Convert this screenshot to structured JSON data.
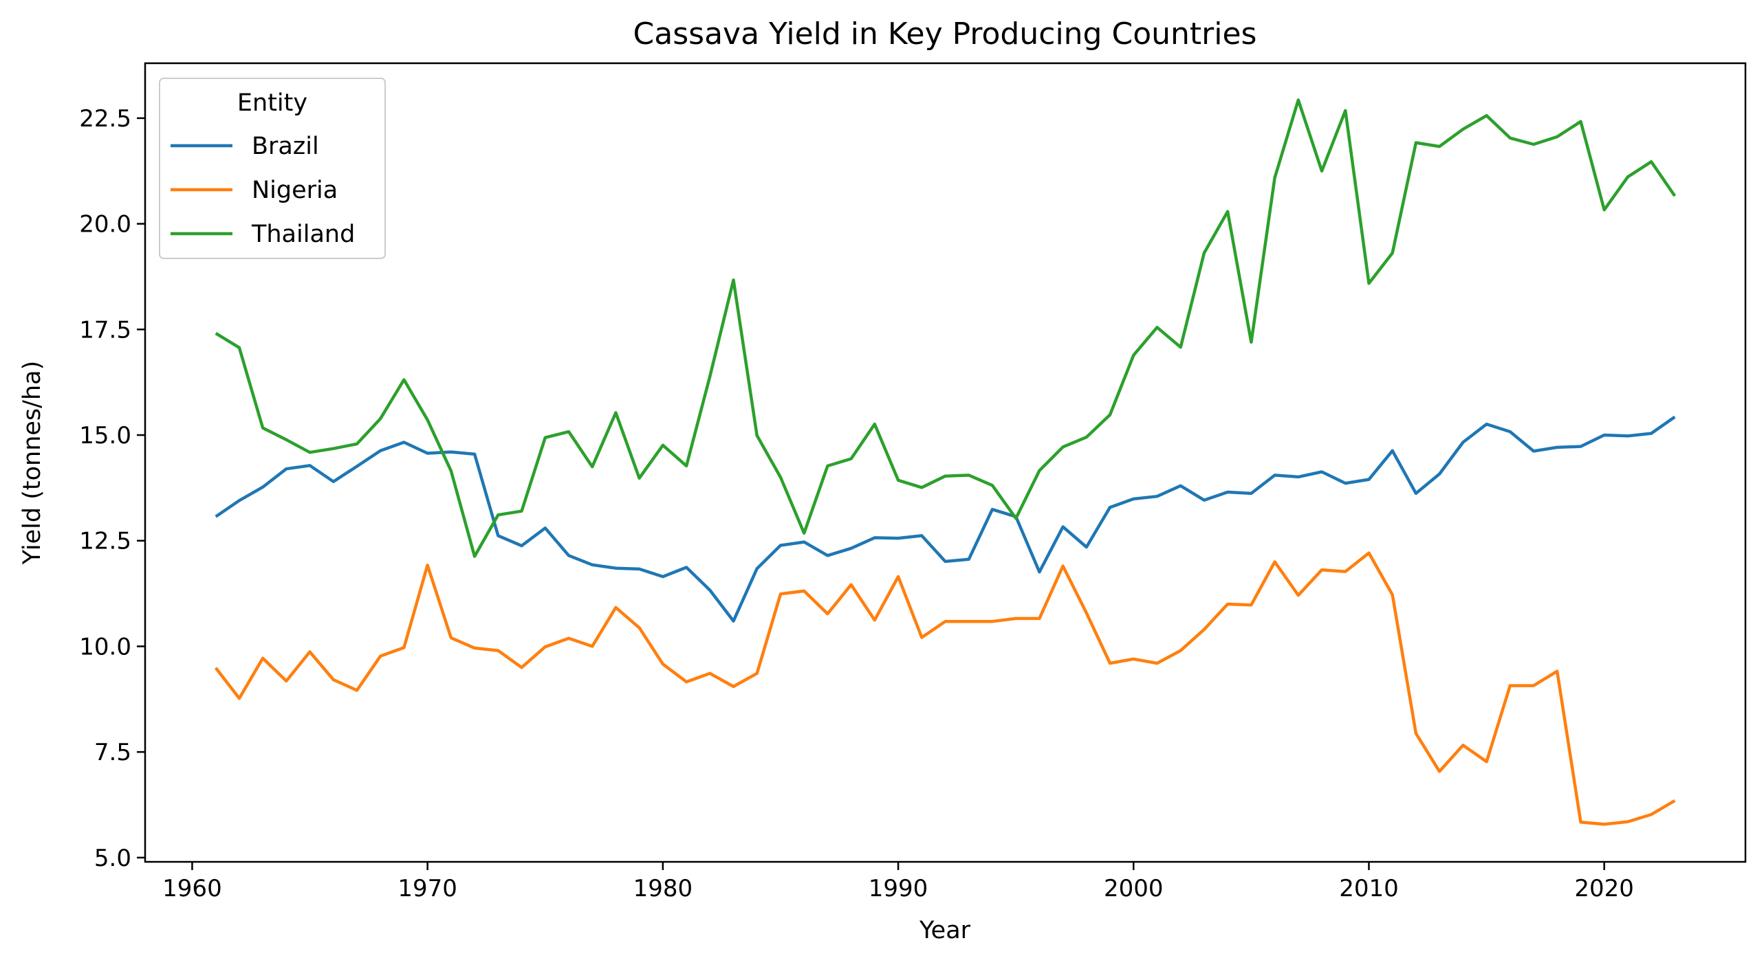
{
  "chart_data": {
    "type": "line",
    "title": "Cassava Yield in Key Producing Countries",
    "xlabel": "Year",
    "ylabel": "Yield (tonnes/ha)",
    "xlim": [
      1958,
      2026
    ],
    "ylim": [
      4.9,
      23.8
    ],
    "xticks": [
      1960,
      1970,
      1980,
      1990,
      2000,
      2010,
      2020
    ],
    "yticks": [
      5.0,
      7.5,
      10.0,
      12.5,
      15.0,
      17.5,
      20.0,
      22.5
    ],
    "ytick_labels": [
      "5.0",
      "7.5",
      "10.0",
      "12.5",
      "15.0",
      "17.5",
      "20.0",
      "22.5"
    ],
    "grid": false,
    "legend": {
      "title": "Entity",
      "position": "top-left"
    },
    "x": [
      1961,
      1962,
      1963,
      1964,
      1965,
      1966,
      1967,
      1968,
      1969,
      1970,
      1971,
      1972,
      1973,
      1974,
      1975,
      1976,
      1977,
      1978,
      1979,
      1980,
      1981,
      1982,
      1983,
      1984,
      1985,
      1986,
      1987,
      1988,
      1989,
      1990,
      1991,
      1992,
      1993,
      1994,
      1995,
      1996,
      1997,
      1998,
      1999,
      2000,
      2001,
      2002,
      2003,
      2004,
      2005,
      2006,
      2007,
      2008,
      2009,
      2010,
      2011,
      2012,
      2013,
      2014,
      2015,
      2016,
      2017,
      2018,
      2019,
      2020,
      2021,
      2022,
      2023
    ],
    "series": [
      {
        "name": "Brazil",
        "color": "#1f77b4",
        "values": [
          13.07,
          13.45,
          13.77,
          14.2,
          14.28,
          13.9,
          14.26,
          14.63,
          14.83,
          14.57,
          14.6,
          14.55,
          12.62,
          12.38,
          12.8,
          12.15,
          11.93,
          11.85,
          11.83,
          11.65,
          11.87,
          11.33,
          10.6,
          11.84,
          12.39,
          12.47,
          12.15,
          12.32,
          12.57,
          12.56,
          12.62,
          12.01,
          12.06,
          13.24,
          13.07,
          11.76,
          12.83,
          12.35,
          13.29,
          13.49,
          13.55,
          13.8,
          13.46,
          13.65,
          13.62,
          14.05,
          14.01,
          14.13,
          13.86,
          13.95,
          14.63,
          13.62,
          14.08,
          14.83,
          15.26,
          15.08,
          14.62,
          14.71,
          14.73,
          15.0,
          14.98,
          15.04,
          15.43
        ]
      },
      {
        "name": "Nigeria",
        "color": "#ff7f0e",
        "values": [
          9.49,
          8.77,
          9.72,
          9.18,
          9.87,
          9.21,
          8.96,
          9.77,
          9.97,
          11.92,
          10.2,
          9.96,
          9.9,
          9.5,
          9.99,
          10.19,
          10.0,
          10.92,
          10.44,
          9.58,
          9.16,
          9.36,
          9.05,
          9.36,
          11.24,
          11.31,
          10.77,
          11.46,
          10.62,
          11.65,
          10.21,
          10.59,
          10.59,
          10.59,
          10.66,
          10.66,
          11.9,
          10.79,
          9.6,
          9.7,
          9.6,
          9.9,
          10.4,
          11.0,
          10.98,
          12.0,
          11.21,
          11.81,
          11.77,
          12.21,
          11.22,
          7.94,
          7.04,
          7.66,
          7.27,
          9.07,
          9.07,
          9.41,
          5.84,
          5.79,
          5.85,
          6.02,
          6.35
        ]
      },
      {
        "name": "Thailand",
        "color": "#2ca02c",
        "values": [
          17.41,
          17.07,
          15.17,
          14.89,
          14.59,
          14.68,
          14.79,
          15.39,
          16.31,
          15.36,
          14.15,
          12.13,
          13.11,
          13.2,
          14.94,
          15.08,
          14.25,
          15.53,
          13.98,
          14.76,
          14.27,
          16.39,
          18.67,
          14.99,
          14.0,
          12.68,
          14.27,
          14.44,
          15.26,
          13.93,
          13.76,
          14.03,
          14.05,
          13.81,
          13.03,
          14.16,
          14.72,
          14.95,
          15.48,
          16.89,
          17.55,
          17.08,
          19.31,
          20.29,
          17.2,
          21.09,
          22.93,
          21.25,
          22.68,
          18.59,
          19.31,
          21.92,
          21.83,
          22.24,
          22.56,
          22.03,
          21.88,
          22.06,
          22.42,
          20.33,
          21.11,
          21.47,
          20.66
        ]
      }
    ]
  }
}
